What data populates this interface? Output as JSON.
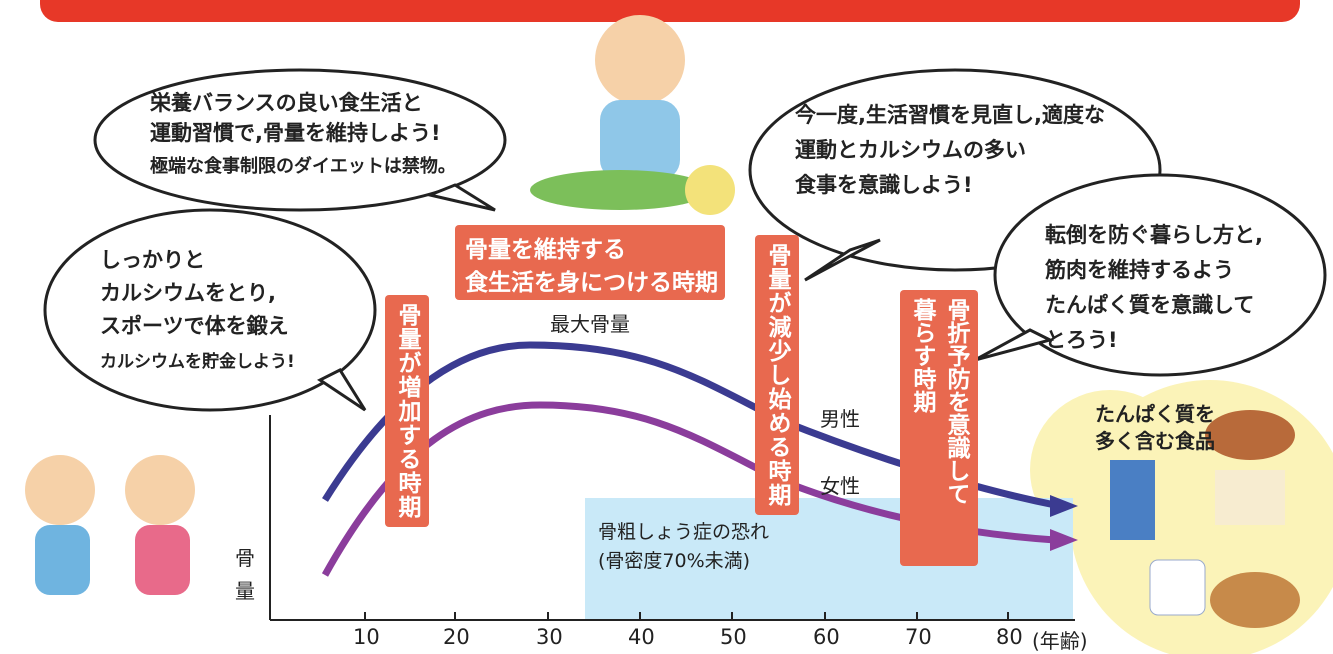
{
  "bubbles": [
    {
      "lines": [
        "栄養バランスの良い食生活と",
        "運動習慣で,骨量を維持しよう!",
        "極端な食事制限のダイエットは禁物。"
      ]
    },
    {
      "lines": [
        "しっかりと",
        "カルシウムをとり,",
        "スポーツで体を鍛え",
        "カルシウムを貯金しよう!"
      ]
    },
    {
      "lines": [
        "今一度,生活習慣を見直し,適度な",
        "運動とカルシウムの多い",
        "食事を意識しよう!"
      ]
    },
    {
      "lines": [
        "転倒を防ぐ暮らし方と,",
        "筋肉を維持するよう",
        "たんぱく質を意識して",
        "とろう!"
      ]
    }
  ],
  "periods": {
    "maintain": [
      "骨量を維持する",
      "食生活を身につける時期"
    ],
    "increase": "骨量が増加する時期",
    "decrease": "骨量が減少し始める時期",
    "prevent": [
      "骨折予防を意識して",
      "暮らす時期"
    ]
  },
  "labels": {
    "peak": "最大骨量",
    "male": "男性",
    "female": "女性"
  },
  "risk_zone": [
    "骨粗しょう症の恐れ",
    "(骨密度70%未満)"
  ],
  "axis": {
    "y_label": [
      "骨",
      "量"
    ],
    "x_ticks": [
      "10",
      "20",
      "30",
      "40",
      "50",
      "60",
      "70",
      "80"
    ],
    "x_unit": "(年齢)"
  },
  "food": [
    "たんぱく質を",
    "多く含む食品"
  ]
}
